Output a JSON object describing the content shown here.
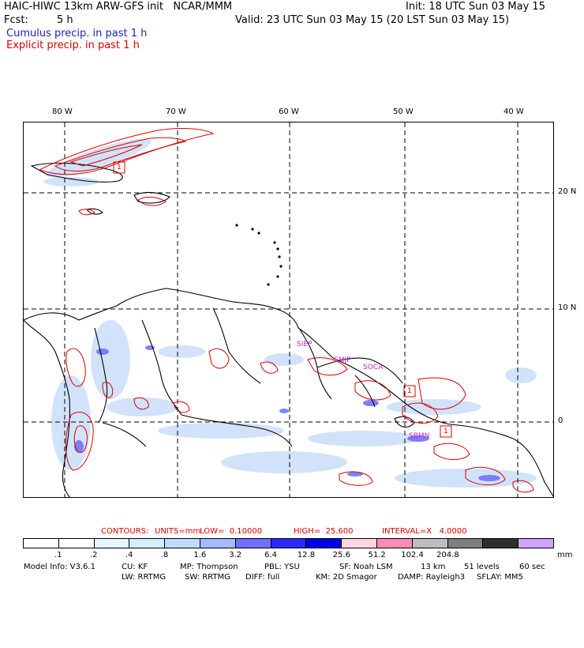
{
  "header": {
    "title_left": "HAIC-HIWC 13km ARW-GFS init   NCAR/MMM",
    "init": "Init: 18 UTC Sun 03 May 15",
    "fcst_label": "Fcst:",
    "fcst_value": "5 h",
    "valid": "Valid: 23 UTC Sun 03 May 15 (20 LST Sun 03 May 15)",
    "field_cumulus": "Cumulus precip. in past 1 h",
    "field_explicit": "Explicit precip. in past 1 h"
  },
  "map": {
    "lon_labels": [
      "80 W",
      "70 W",
      "60 W",
      "50 W",
      "40 W"
    ],
    "lat_labels": [
      "20 N",
      "10 N",
      "0"
    ],
    "region_labels": [
      "SIEP",
      "SMJP",
      "SOCA",
      "SBMN"
    ],
    "box_labels": [
      "1",
      "1",
      "1"
    ]
  },
  "contours": {
    "label": "CONTOURS:",
    "units": "UNITS=mm",
    "low": "LOW=  0.10000",
    "high": "HIGH=  25.600",
    "interval": "INTERVAL=X   4.0000"
  },
  "colorbar": {
    "colors": [
      "#ffffff",
      "#ffffff",
      "#e6f6ff",
      "#d4eefd",
      "#bfdcff",
      "#a6baff",
      "#7070ff",
      "#2a2aff",
      "#0000e6",
      "#ffd6e0",
      "#ff8cb4",
      "#bdbdbd",
      "#7f7f7f",
      "#303030",
      "#cfa6ff"
    ],
    "labels": [
      ".1",
      ".2",
      ".4",
      ".8",
      "1.6",
      "3.2",
      "6.4",
      "12.8",
      "25.6",
      "51.2",
      "102.4",
      "204.8"
    ],
    "unit": "mm"
  },
  "model_info": {
    "line1": [
      "Model Info: V3.6.1",
      "CU: KF",
      "MP: Thompson",
      "PBL: YSU",
      "SF: Noah LSM",
      "13 km",
      "51 levels",
      "60 sec"
    ],
    "line2": [
      "LW: RRTMG",
      "SW: RRTMG",
      "DIFF: full",
      "KM: 2D Smagor",
      "DAMP: Rayleigh3",
      "SFLAY: MM5"
    ]
  }
}
